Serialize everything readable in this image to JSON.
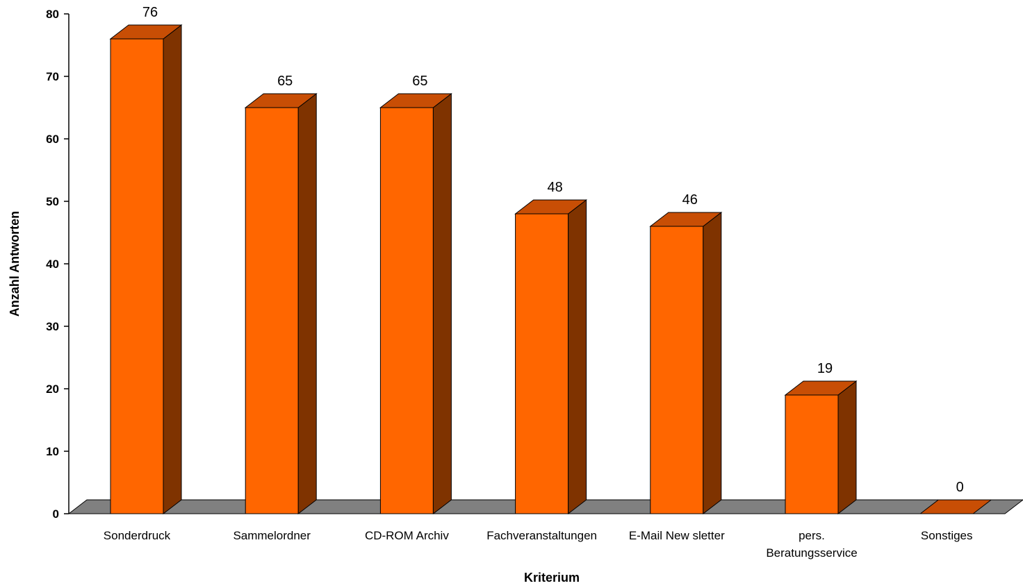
{
  "chart_data": {
    "type": "bar",
    "title": "",
    "xlabel": "Kriterium",
    "ylabel": "Anzahl Antworten",
    "categories": [
      "Sonderdruck",
      "Sammelordner",
      "CD-ROM Archiv",
      "Fachveranstaltungen",
      "E-Mail New sletter",
      "pers. Beratungsservice",
      "Sonstiges"
    ],
    "category_lines": [
      [
        "Sonderdruck"
      ],
      [
        "Sammelordner"
      ],
      [
        "CD-ROM Archiv"
      ],
      [
        "Fachveranstaltungen"
      ],
      [
        "E-Mail New sletter"
      ],
      [
        "pers.",
        "Beratungsservice"
      ],
      [
        "Sonstiges"
      ]
    ],
    "values": [
      76,
      65,
      65,
      48,
      46,
      19,
      0
    ],
    "ylim": [
      0,
      80
    ],
    "yticks": [
      0,
      10,
      20,
      30,
      40,
      50,
      60,
      70,
      80
    ],
    "grid": false,
    "legend": "none",
    "bar_style": "3d",
    "colors": {
      "front": "#ff6600",
      "top": "#c84e05",
      "side": "#7f3300",
      "floor": "#808080",
      "axis": "#000000"
    }
  }
}
